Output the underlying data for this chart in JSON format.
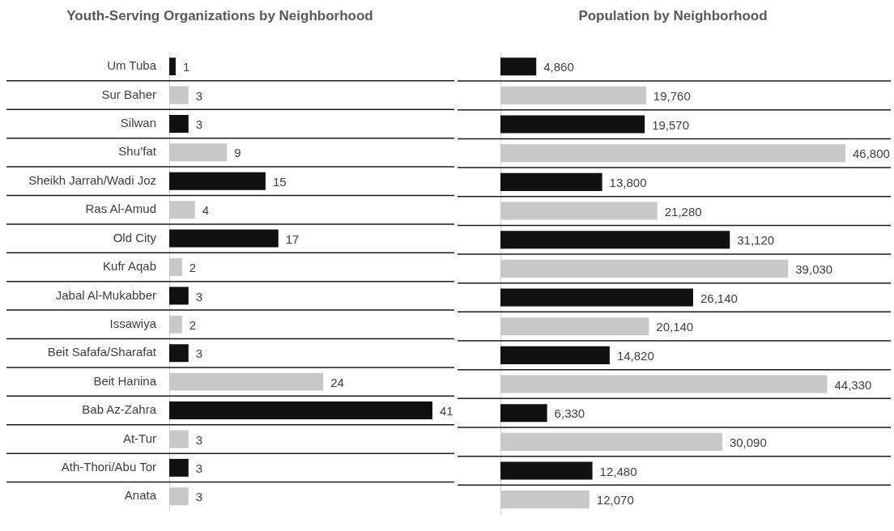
{
  "chart_data": [
    {
      "type": "bar",
      "title": "Youth-Serving Organizations by Neighborhood",
      "orientation": "horizontal",
      "categories": [
        "Um Tuba",
        "Sur Baher",
        "Silwan",
        "Shu’fat",
        "Sheikh Jarrah/Wadi Joz",
        "Ras Al-Amud",
        "Old City",
        "Kufr Aqab",
        "Jabal Al-Mukabber",
        "Issawiya",
        "Beit Safafa/Sharafat",
        "Beit Hanina",
        "Bab Az-Zahra",
        "At-Tur",
        "Ath-Thori/Abu Tor",
        "Anata"
      ],
      "values": [
        1,
        3,
        3,
        9,
        15,
        4,
        17,
        2,
        3,
        2,
        3,
        24,
        41,
        3,
        3,
        3
      ],
      "colors": [
        "#111111",
        "#c8c8c8",
        "#111111",
        "#c8c8c8",
        "#111111",
        "#c8c8c8",
        "#111111",
        "#c8c8c8",
        "#111111",
        "#c8c8c8",
        "#111111",
        "#c8c8c8",
        "#111111",
        "#c8c8c8",
        "#111111",
        "#c8c8c8"
      ],
      "data_labels": true,
      "grid": "y",
      "tick_labels": "y"
    },
    {
      "type": "bar",
      "title": "Population by Neighborhood",
      "orientation": "horizontal",
      "categories": [
        null,
        null,
        null,
        null,
        null,
        null,
        null,
        null,
        null,
        null,
        null,
        null,
        null,
        null,
        null,
        null
      ],
      "values": [
        4860,
        19760,
        19570,
        46800,
        13800,
        21280,
        31120,
        39030,
        26140,
        20140,
        14820,
        44330,
        6330,
        30090,
        12480,
        12070
      ],
      "value_labels": [
        "4,860",
        "19,760",
        "19,570",
        "46,800",
        "13,800",
        "21,280",
        "31,120",
        "39,030",
        "26,140",
        "20,140",
        "14,820",
        "44,330",
        "6,330",
        "30,090",
        "12,480",
        "12,070"
      ],
      "colors": [
        "#111111",
        "#c8c8c8",
        "#111111",
        "#c8c8c8",
        "#111111",
        "#c8c8c8",
        "#111111",
        "#c8c8c8",
        "#111111",
        "#c8c8c8",
        "#111111",
        "#c8c8c8",
        "#111111",
        "#c8c8c8",
        "#111111",
        "#c8c8c8"
      ],
      "grid": "y",
      "tick_labels": false
    }
  ]
}
